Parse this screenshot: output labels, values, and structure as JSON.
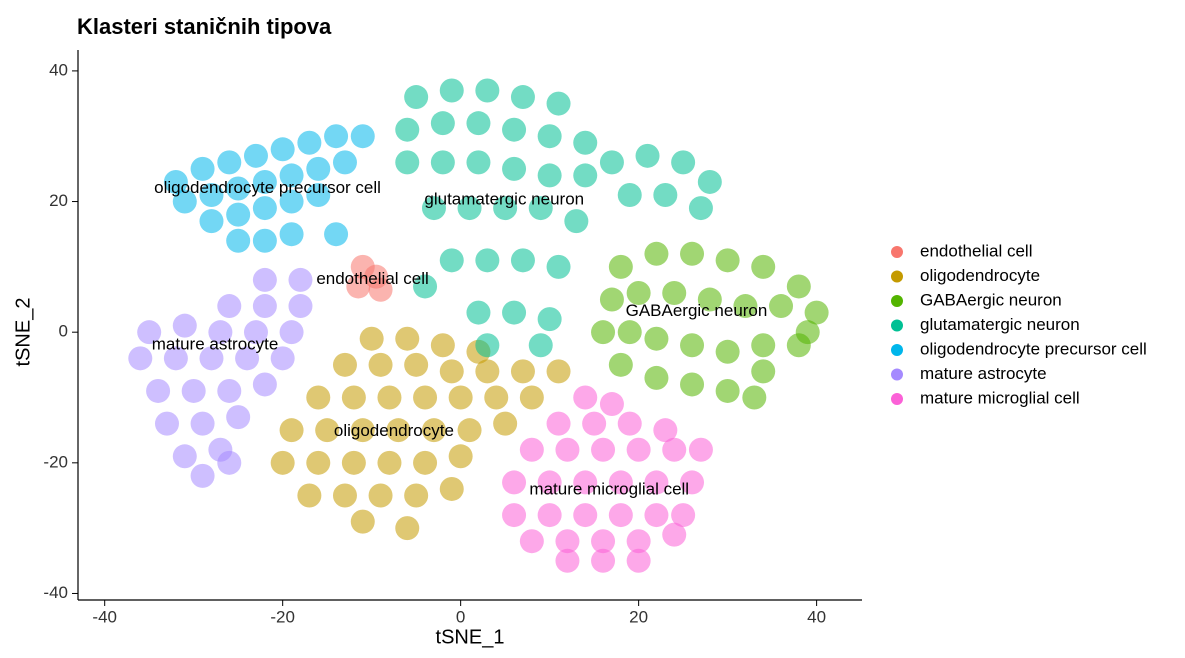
{
  "chart_data": {
    "type": "scatter",
    "title": "Klasteri staničnih tipova",
    "x_label": "tSNE_1",
    "y_label": "tSNE_2",
    "xlim": [
      -43,
      45.1
    ],
    "ylim": [
      -41,
      43.2
    ],
    "xticks": [
      -40,
      -20,
      0,
      20,
      40
    ],
    "yticks": [
      -40,
      -20,
      0,
      20,
      40
    ],
    "grid": false,
    "legend": "right",
    "series": [
      {
        "name": "endothelial cell",
        "color": "#F8766D",
        "x": [
          -11,
          -9.5,
          -11.5,
          -9
        ],
        "y": [
          10,
          8.5,
          7,
          6.5
        ]
      },
      {
        "name": "oligodendrocyte",
        "color": "#C49A00",
        "x": [
          -10,
          -6,
          -2,
          2,
          -13,
          -9,
          -5,
          -1,
          3,
          7,
          11,
          -16,
          -12,
          -8,
          -4,
          0,
          4,
          8,
          -19,
          -15,
          -11,
          -7,
          -3,
          1,
          5,
          -20,
          -16,
          -12,
          -8,
          -4,
          0,
          -17,
          -13,
          -9,
          -5,
          -1,
          -11,
          -6
        ],
        "y": [
          -1,
          -1,
          -2,
          -3,
          -5,
          -5,
          -5,
          -6,
          -6,
          -6,
          -6,
          -10,
          -10,
          -10,
          -10,
          -10,
          -10,
          -10,
          -15,
          -15,
          -15,
          -15,
          -15,
          -15,
          -14,
          -20,
          -20,
          -20,
          -20,
          -20,
          -19,
          -25,
          -25,
          -25,
          -25,
          -24,
          -29,
          -30
        ]
      },
      {
        "name": "GABAergic neuron",
        "color": "#53B400",
        "x": [
          18,
          22,
          26,
          30,
          34,
          38,
          40,
          17,
          20,
          24,
          28,
          32,
          36,
          39,
          16,
          19,
          22,
          26,
          30,
          34,
          38,
          18,
          22,
          26,
          30,
          33,
          34
        ],
        "y": [
          10,
          12,
          12,
          11,
          10,
          7,
          3,
          5,
          6,
          6,
          5,
          4,
          4,
          0,
          0,
          0,
          -1,
          -2,
          -3,
          -2,
          -2,
          -5,
          -7,
          -8,
          -9,
          -10,
          -6
        ]
      },
      {
        "name": "glutamatergic neuron",
        "color": "#00C094",
        "x": [
          -5,
          -1,
          3,
          7,
          11,
          -6,
          -2,
          2,
          6,
          10,
          14,
          -6,
          -2,
          2,
          6,
          10,
          14,
          17,
          21,
          25,
          28,
          19,
          23,
          27,
          -3,
          1,
          5,
          9,
          13,
          -1,
          3,
          7,
          11,
          2,
          6,
          10,
          -4,
          3,
          9
        ],
        "y": [
          36,
          37,
          37,
          36,
          35,
          31,
          32,
          32,
          31,
          30,
          29,
          26,
          26,
          26,
          25,
          24,
          24,
          26,
          27,
          26,
          23,
          21,
          21,
          19,
          19,
          19,
          19,
          19,
          17,
          11,
          11,
          11,
          10,
          3,
          3,
          2,
          7,
          -2,
          -2
        ]
      },
      {
        "name": "oligodendrocyte precursor cell",
        "color": "#00B6EB",
        "x": [
          -32,
          -29,
          -26,
          -23,
          -20,
          -17,
          -14,
          -11,
          -31,
          -28,
          -25,
          -22,
          -19,
          -16,
          -13,
          -28,
          -25,
          -22,
          -19,
          -16,
          -25,
          -22,
          -19,
          -14
        ],
        "y": [
          23,
          25,
          26,
          27,
          28,
          29,
          30,
          30,
          20,
          21,
          22,
          23,
          24,
          25,
          26,
          17,
          18,
          19,
          20,
          21,
          14,
          14,
          15,
          15
        ]
      },
      {
        "name": "mature astrocyte",
        "color": "#A58AFF",
        "x": [
          -22,
          -18,
          -26,
          -22,
          -18,
          -35,
          -31,
          -27,
          -23,
          -19,
          -36,
          -32,
          -28,
          -24,
          -20,
          -34,
          -30,
          -26,
          -22,
          -33,
          -29,
          -25,
          -31,
          -27,
          -29,
          -26
        ],
        "y": [
          8,
          8,
          4,
          4,
          4,
          0,
          1,
          0,
          0,
          0,
          -4,
          -4,
          -4,
          -4,
          -4,
          -9,
          -9,
          -9,
          -8,
          -14,
          -14,
          -13,
          -19,
          -18,
          -22,
          -20
        ]
      },
      {
        "name": "mature microglial cell",
        "color": "#FB61D7",
        "x": [
          14,
          17,
          11,
          15,
          19,
          23,
          8,
          12,
          16,
          20,
          24,
          27,
          6,
          10,
          14,
          18,
          22,
          26,
          6,
          10,
          14,
          18,
          22,
          25,
          8,
          12,
          16,
          20,
          24,
          12,
          16,
          20
        ],
        "y": [
          -10,
          -11,
          -14,
          -14,
          -14,
          -15,
          -18,
          -18,
          -18,
          -18,
          -18,
          -18,
          -23,
          -23,
          -23,
          -23,
          -23,
          -23,
          -28,
          -28,
          -28,
          -28,
          -28,
          -28,
          -32,
          -32,
          -32,
          -32,
          -31,
          -35,
          -35,
          -35
        ]
      }
    ],
    "annotations": [
      {
        "text": "oligodendrocyte precursor cell",
        "x": -21.7,
        "y": 22
      },
      {
        "text": "glutamatergic neuron",
        "x": 4.9,
        "y": 20.2
      },
      {
        "text": "endothelial cell",
        "x": -9.9,
        "y": 8.1
      },
      {
        "text": "GABAergic neuron",
        "x": 26.5,
        "y": 3.2
      },
      {
        "text": "mature astrocyte",
        "x": -27.6,
        "y": -2
      },
      {
        "text": "oligodendrocyte",
        "x": -7.5,
        "y": -15.2
      },
      {
        "text": "mature microglial cell",
        "x": 16.7,
        "y": -24.2
      }
    ]
  }
}
